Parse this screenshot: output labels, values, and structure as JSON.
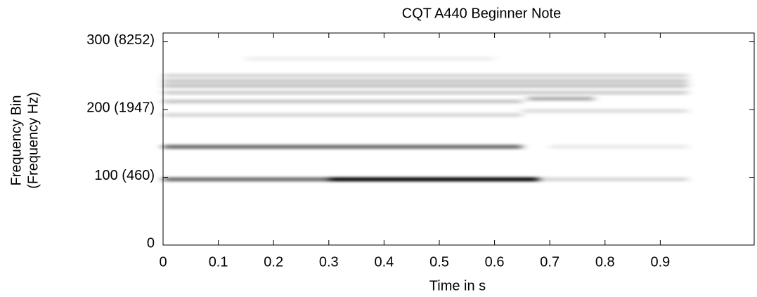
{
  "chart_data": {
    "type": "spectrogram",
    "title": "CQT A440 Beginner Note",
    "x_label": "Time in s",
    "y_label": [
      "Frequency Bin",
      "(Frequency Hz)"
    ],
    "xlim": [
      0,
      1.07
    ],
    "xticks": [
      0,
      0.1,
      0.2,
      0.3,
      0.4,
      0.5,
      0.6,
      0.7,
      0.8,
      0.9
    ],
    "ylim": [
      0,
      313
    ],
    "yticks": [
      0,
      {
        "value": 100,
        "label": "100 (460)"
      },
      {
        "value": 200,
        "label": "200 (1947)"
      },
      {
        "value": 300,
        "label": "300 (8252)"
      }
    ],
    "color": "#000000",
    "bands": [
      {
        "bin": 97,
        "t0": 0.0,
        "t1": 0.3,
        "level": 0.55
      },
      {
        "bin": 97,
        "t0": 0.3,
        "t1": 0.68,
        "level": 0.95
      },
      {
        "bin": 97,
        "t0": 0.68,
        "t1": 0.95,
        "level": 0.15
      },
      {
        "bin": 145,
        "t0": 0.0,
        "t1": 0.65,
        "level": 0.55
      },
      {
        "bin": 145,
        "t0": 0.7,
        "t1": 0.95,
        "level": 0.08
      },
      {
        "bin": 192,
        "t0": 0.0,
        "t1": 0.65,
        "level": 0.15
      },
      {
        "bin": 198,
        "t0": 0.65,
        "t1": 0.95,
        "level": 0.12
      },
      {
        "bin": 212,
        "t0": 0.0,
        "t1": 0.65,
        "level": 0.2
      },
      {
        "bin": 216,
        "t0": 0.66,
        "t1": 0.78,
        "level": 0.3
      },
      {
        "bin": 225,
        "t0": 0.0,
        "t1": 0.95,
        "level": 0.18
      },
      {
        "bin": 235,
        "t0": 0.0,
        "t1": 0.95,
        "level": 0.22
      },
      {
        "bin": 242,
        "t0": 0.0,
        "t1": 0.95,
        "level": 0.2
      },
      {
        "bin": 250,
        "t0": 0.0,
        "t1": 0.95,
        "level": 0.15
      },
      {
        "bin": 275,
        "t0": 0.15,
        "t1": 0.6,
        "level": 0.06
      }
    ]
  }
}
